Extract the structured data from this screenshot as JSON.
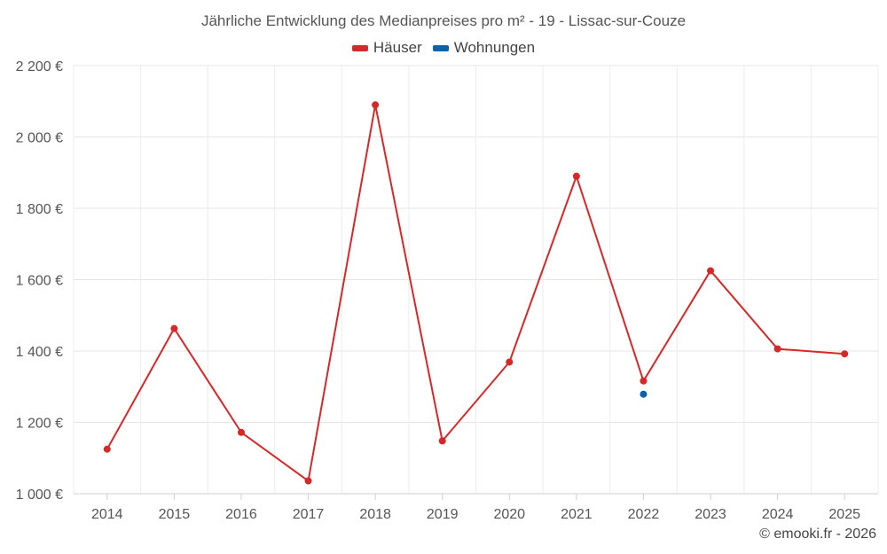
{
  "chart_data": {
    "type": "line",
    "title": "Jährliche Entwicklung des Medianpreises pro m² - 19 - Lissac-sur-Couze",
    "categories": [
      "2014",
      "2015",
      "2016",
      "2017",
      "2018",
      "2019",
      "2020",
      "2021",
      "2022",
      "2023",
      "2024",
      "2025"
    ],
    "series": [
      {
        "name": "Häuser",
        "color": "#d62828",
        "values": [
          1125,
          1463,
          1172,
          1036,
          2090,
          1148,
          1369,
          1890,
          1316,
          1625,
          1406,
          1392
        ]
      },
      {
        "name": "Wohnungen",
        "color": "#0a63a8",
        "values": [
          null,
          null,
          null,
          null,
          null,
          null,
          null,
          null,
          1279,
          null,
          null,
          null
        ]
      }
    ],
    "ylim": [
      1000,
      2200
    ],
    "yticks": [
      1000,
      1200,
      1400,
      1600,
      1800,
      2000,
      2200
    ],
    "ytick_labels": [
      "1 000 €",
      "1 200 €",
      "1 400 €",
      "1 600 €",
      "1 800 €",
      "2 000 €",
      "2 200 €"
    ],
    "grid": true,
    "legend_position": "top-center"
  },
  "footer": {
    "credit": "© emooki.fr - 2026"
  }
}
